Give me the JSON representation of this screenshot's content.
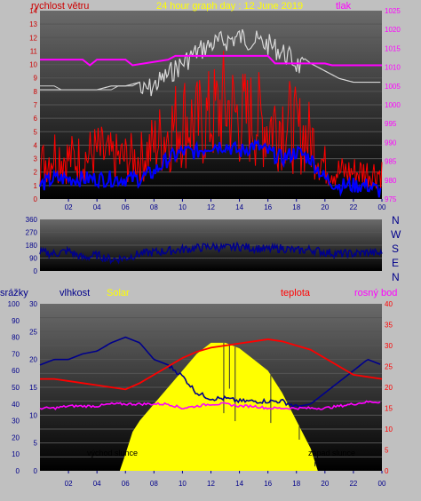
{
  "colors": {
    "wind": "#ff0000",
    "gust": "#0000ff",
    "pressure": "#ff00ff",
    "solar_top": "#d8d8d8",
    "humidity": "#00008b",
    "temperature": "#ff0000",
    "dewpoint": "#ff00ff",
    "solar": "#ffff00",
    "rain": "#0000ff",
    "direction": "#00008b"
  },
  "chart_data": [
    {
      "type": "line",
      "title": "24 hour graph day : 12 June 2019",
      "labels": {
        "left": "rychlost větru",
        "right": "tlak"
      },
      "x_ticks": [
        "02",
        "04",
        "06",
        "08",
        "10",
        "12",
        "14",
        "16",
        "18",
        "20",
        "22",
        "00"
      ],
      "y_left_ticks": [
        "0",
        "1",
        "2",
        "3",
        "4",
        "5",
        "6",
        "7",
        "8",
        "9",
        "10",
        "11",
        "12",
        "13",
        "14"
      ],
      "y_right_ticks": [
        "975",
        "980",
        "985",
        "990",
        "995",
        "1000",
        "1005",
        "1010",
        "1015",
        "1020",
        "1025"
      ],
      "ylim_left": [
        0,
        14
      ],
      "ylim_right": [
        975,
        1025
      ],
      "xlim": [
        0,
        24
      ],
      "series": [
        {
          "key": "wind",
          "x": [
            0,
            1,
            2,
            3,
            4,
            5,
            6,
            7,
            8,
            9,
            10,
            11,
            12,
            13,
            14,
            15,
            16,
            17,
            18,
            19,
            20,
            21,
            22,
            23,
            24
          ],
          "values": [
            2.5,
            3.5,
            3,
            3,
            3.5,
            3,
            3,
            3,
            4,
            5,
            6,
            5.5,
            6,
            7,
            6,
            6,
            5.5,
            6,
            5,
            4.5,
            2.5,
            2,
            2,
            2,
            2
          ]
        },
        {
          "key": "gust",
          "x": [
            0,
            1,
            2,
            3,
            4,
            5,
            6,
            7,
            8,
            9,
            10,
            11,
            12,
            13,
            14,
            15,
            16,
            17,
            18,
            19,
            20,
            21,
            22,
            23,
            24
          ],
          "values": [
            1,
            1.5,
            1.5,
            1.5,
            1.5,
            1.5,
            1.5,
            1.5,
            2,
            3,
            3.5,
            3.5,
            4,
            4,
            3.5,
            4,
            3.5,
            3,
            3.5,
            3,
            1.5,
            1,
            1,
            1,
            0.5
          ]
        },
        {
          "key": "pressure",
          "x": [
            0,
            3,
            3.5,
            4,
            6,
            6.5,
            9,
            9.5,
            16,
            16.5,
            20,
            20.5,
            24
          ],
          "values": [
            1012,
            1012,
            1010.5,
            1012,
            1012,
            1010.5,
            1012,
            1013,
            1013,
            1011,
            1011,
            1010.5,
            1010.5
          ]
        },
        {
          "key": "solar_top",
          "x": [
            0,
            4,
            5,
            6,
            7,
            8,
            9,
            10,
            11,
            12,
            13,
            14,
            15,
            16,
            17,
            18,
            19,
            20,
            21,
            22,
            23,
            24
          ],
          "values": [
            1004,
            1004,
            1005,
            1005,
            1006,
            1008,
            1011,
            1014,
            1017,
            1019,
            1020,
            1021,
            1020,
            1019,
            1017,
            1014,
            1011,
            1009,
            1007,
            1006,
            1006,
            1006
          ]
        }
      ]
    },
    {
      "type": "line",
      "labels": {
        "right": "N W S E N"
      },
      "y_ticks": [
        "0",
        "90",
        "180",
        "270",
        "360"
      ],
      "ylim": [
        0,
        360
      ],
      "series": [
        {
          "key": "direction",
          "x": [
            0,
            1,
            2,
            3,
            4,
            5,
            6,
            7,
            8,
            9,
            10,
            11,
            12,
            13,
            14,
            15,
            16,
            17,
            18,
            19,
            20,
            21,
            22,
            23,
            24
          ],
          "values": [
            130,
            120,
            140,
            90,
            110,
            80,
            90,
            120,
            130,
            140,
            150,
            160,
            170,
            160,
            170,
            160,
            150,
            160,
            140,
            150,
            130,
            120,
            120,
            130,
            120
          ]
        }
      ]
    },
    {
      "type": "line",
      "labels": {
        "rain": "srážky",
        "humidity": "vlhkost",
        "solar": "Solar",
        "temperature": "teplota",
        "dewpoint": "rosný bod"
      },
      "y_left_rain_ticks": [
        "0",
        "10",
        "20",
        "30",
        "40",
        "50",
        "60",
        "70",
        "80",
        "90",
        "100"
      ],
      "y_left_ticks": [
        "0",
        "5",
        "10",
        "15",
        "20",
        "25",
        "30"
      ],
      "y_right_ticks": [
        "0",
        "5",
        "10",
        "15",
        "20",
        "25",
        "30",
        "35",
        "40"
      ],
      "ylim_left": [
        0,
        30
      ],
      "ylim_right": [
        0,
        40
      ],
      "annotations": [
        "východ slunce",
        "západ slunce"
      ],
      "series": [
        {
          "key": "humidity",
          "x": [
            0,
            1,
            2,
            3,
            4,
            5,
            6,
            7,
            8,
            9,
            10,
            11,
            12,
            13,
            14,
            15,
            16,
            17,
            18,
            19,
            20,
            21,
            22,
            23,
            24
          ],
          "values": [
            19,
            20,
            20,
            21,
            21.5,
            23,
            24,
            23,
            20,
            19,
            17,
            14,
            13,
            13,
            12.5,
            12.5,
            12.5,
            12.5,
            11.5,
            12,
            14,
            16,
            18,
            20,
            19
          ]
        },
        {
          "key": "temperature",
          "x": [
            0,
            1,
            2,
            3,
            4,
            5,
            6,
            7,
            8,
            9,
            10,
            11,
            12,
            13,
            14,
            15,
            16,
            17,
            18,
            19,
            20,
            21,
            22,
            23,
            24
          ],
          "values": [
            22,
            22,
            21.5,
            21,
            20.5,
            20,
            19.5,
            21,
            23,
            25,
            27,
            28.5,
            29.5,
            30,
            30.5,
            31,
            31.5,
            31,
            30,
            29,
            27,
            25,
            23,
            22.5,
            22
          ]
        },
        {
          "key": "dewpoint",
          "x": [
            0,
            1,
            2,
            3,
            4,
            5,
            6,
            7,
            8,
            9,
            10,
            11,
            12,
            13,
            14,
            15,
            16,
            17,
            18,
            19,
            20,
            21,
            22,
            23,
            24
          ],
          "values": [
            15,
            15,
            15.5,
            15.5,
            15.5,
            16,
            16,
            16,
            16,
            16,
            15,
            15.5,
            16,
            16,
            15.5,
            15.5,
            15,
            15,
            15,
            15,
            15,
            15.5,
            16,
            16.5,
            16.5
          ]
        },
        {
          "key": "solar",
          "x": [
            5.6,
            6,
            6.5,
            7,
            8,
            9,
            10,
            11,
            12,
            13,
            14,
            15,
            16,
            17,
            18,
            19,
            19.5
          ],
          "values": [
            0,
            3,
            7,
            9,
            12,
            15,
            18,
            21,
            23,
            23,
            22,
            20,
            18,
            14,
            9,
            4,
            0
          ]
        }
      ]
    }
  ]
}
